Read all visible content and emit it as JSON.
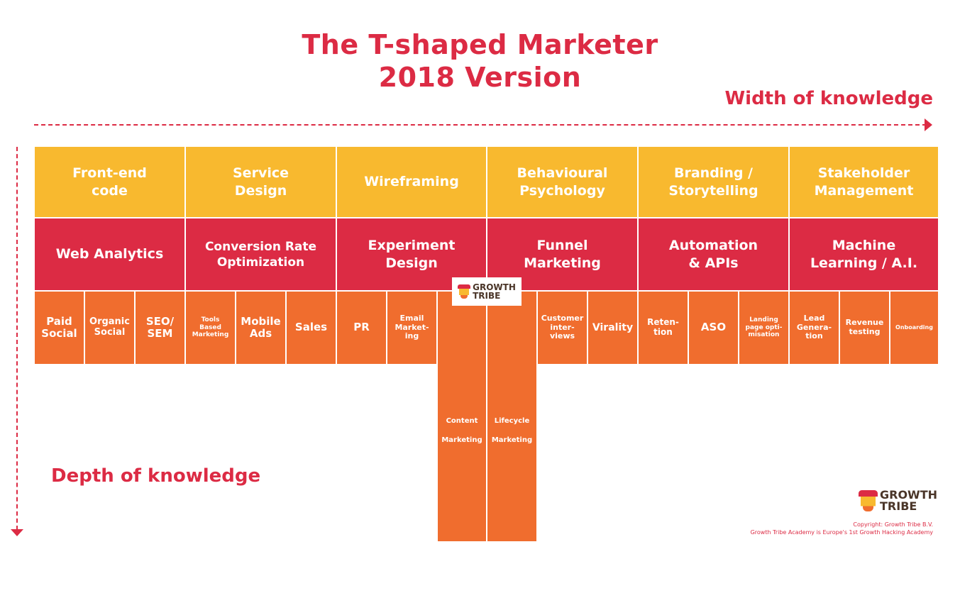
{
  "title": {
    "line1": "The T-shaped Marketer",
    "line2": "2018 Version"
  },
  "width_label": "Width of knowledge",
  "depth_label": "Depth of knowledge",
  "colors": {
    "yellow": "#f8b92f",
    "red": "#dc2b44",
    "orange": "#f06d2e"
  },
  "row1": [
    {
      "l1": "Front-end",
      "l2": "code"
    },
    {
      "l1": "Service",
      "l2": "Design"
    },
    {
      "l1": "Wireframing",
      "l2": ""
    },
    {
      "l1": "Behavioural",
      "l2": "Psychology"
    },
    {
      "l1": "Branding /",
      "l2": "Storytelling"
    },
    {
      "l1": "Stakeholder",
      "l2": "Management"
    }
  ],
  "row2": [
    {
      "l1": "Web Analytics",
      "l2": ""
    },
    {
      "l1": "Conversion Rate",
      "l2": "Optimization"
    },
    {
      "l1": "Experiment",
      "l2": "Design"
    },
    {
      "l1": "Funnel",
      "l2": "Marketing"
    },
    {
      "l1": "Automation",
      "l2": "& APIs"
    },
    {
      "l1": "Machine",
      "l2": "Learning / A.I."
    }
  ],
  "row3": [
    {
      "l1": "Paid",
      "l2": "Social",
      "l3": ""
    },
    {
      "l1": "Organic",
      "l2": "Social",
      "l3": ""
    },
    {
      "l1": "SEO/",
      "l2": "SEM",
      "l3": ""
    },
    {
      "l1": "Tools",
      "l2": "Based",
      "l3": "Marketing"
    },
    {
      "l1": "Mobile",
      "l2": "Ads",
      "l3": ""
    },
    {
      "l1": "Sales",
      "l2": "",
      "l3": ""
    },
    {
      "l1": "PR",
      "l2": "",
      "l3": ""
    },
    {
      "l1": "Email",
      "l2": "Market-",
      "l3": "ing"
    },
    {
      "l1": "Customer",
      "l2": "inter-",
      "l3": "views"
    },
    {
      "l1": "Virality",
      "l2": "",
      "l3": ""
    },
    {
      "l1": "Reten-",
      "l2": "tion",
      "l3": ""
    },
    {
      "l1": "ASO",
      "l2": "",
      "l3": ""
    },
    {
      "l1": "Landing",
      "l2": "page opti-",
      "l3": "misation"
    },
    {
      "l1": "Lead",
      "l2": "Genera-",
      "l3": "tion"
    },
    {
      "l1": "Revenue",
      "l2": "testing",
      "l3": ""
    },
    {
      "l1": "Onboarding",
      "l2": "",
      "l3": ""
    }
  ],
  "stem": [
    {
      "l1": "Content",
      "l2": "Marketing"
    },
    {
      "l1": "Lifecycle",
      "l2": "Marketing"
    }
  ],
  "logo": {
    "line1": "GROWTH",
    "line2": "TRIBE"
  },
  "copyright": {
    "line1": "Copyright: Growth Tribe B.V.",
    "line2": "Growth Tribe Academy is Europe's 1st Growth Hacking Academy"
  }
}
